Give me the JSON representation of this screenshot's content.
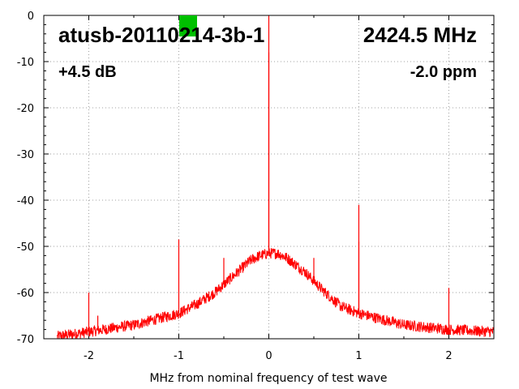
{
  "chart_data": {
    "type": "line",
    "title": "atusb-20110214-3b-1",
    "frequency_label": "2424.5 MHz",
    "gain_label": "+4.5 dB",
    "ppm_label": "-2.0 ppm",
    "xlabel": "MHz from nominal frequency of test wave",
    "ylabel": "",
    "xlim": [
      -2.5,
      2.5
    ],
    "ylim": [
      -70,
      0
    ],
    "x_ticks": [
      -2,
      -1,
      0,
      1,
      2
    ],
    "x_tick_labels": [
      "-2",
      "-1",
      "0",
      "1",
      "2"
    ],
    "y_ticks": [
      0,
      -10,
      -20,
      -30,
      -40,
      -50,
      -60,
      -70
    ],
    "y_tick_labels": [
      "0",
      "-10",
      "-20",
      "-30",
      "-40",
      "-50",
      "-60",
      "-70"
    ],
    "grid": true,
    "series_color": "#ff0000",
    "indicator_color": "#00c000",
    "noise_floor": {
      "x": [
        -2.35,
        -2.0,
        -1.5,
        -1.0,
        -0.8,
        -0.6,
        -0.4,
        -0.2,
        -0.1,
        0.0,
        0.1,
        0.2,
        0.4,
        0.6,
        0.8,
        1.0,
        1.5,
        2.0,
        2.5
      ],
      "y": [
        -69.5,
        -68.5,
        -67,
        -64.5,
        -62.5,
        -60,
        -56.5,
        -53,
        -52,
        -51.5,
        -51.5,
        -52.5,
        -55.5,
        -59.5,
        -63,
        -64.5,
        -67,
        -68,
        -68.5
      ]
    },
    "spurs": [
      {
        "x": -2.0,
        "y": -60
      },
      {
        "x": -1.9,
        "y": -65
      },
      {
        "x": -1.0,
        "y": -48.5
      },
      {
        "x": -0.5,
        "y": -52.5
      },
      {
        "x": 0.0,
        "y": 0
      },
      {
        "x": 0.0,
        "y": -8
      },
      {
        "x": 0.5,
        "y": -52.5
      },
      {
        "x": 1.0,
        "y": -41
      },
      {
        "x": 1.0,
        "y": -49
      },
      {
        "x": 2.0,
        "y": -59
      }
    ]
  }
}
